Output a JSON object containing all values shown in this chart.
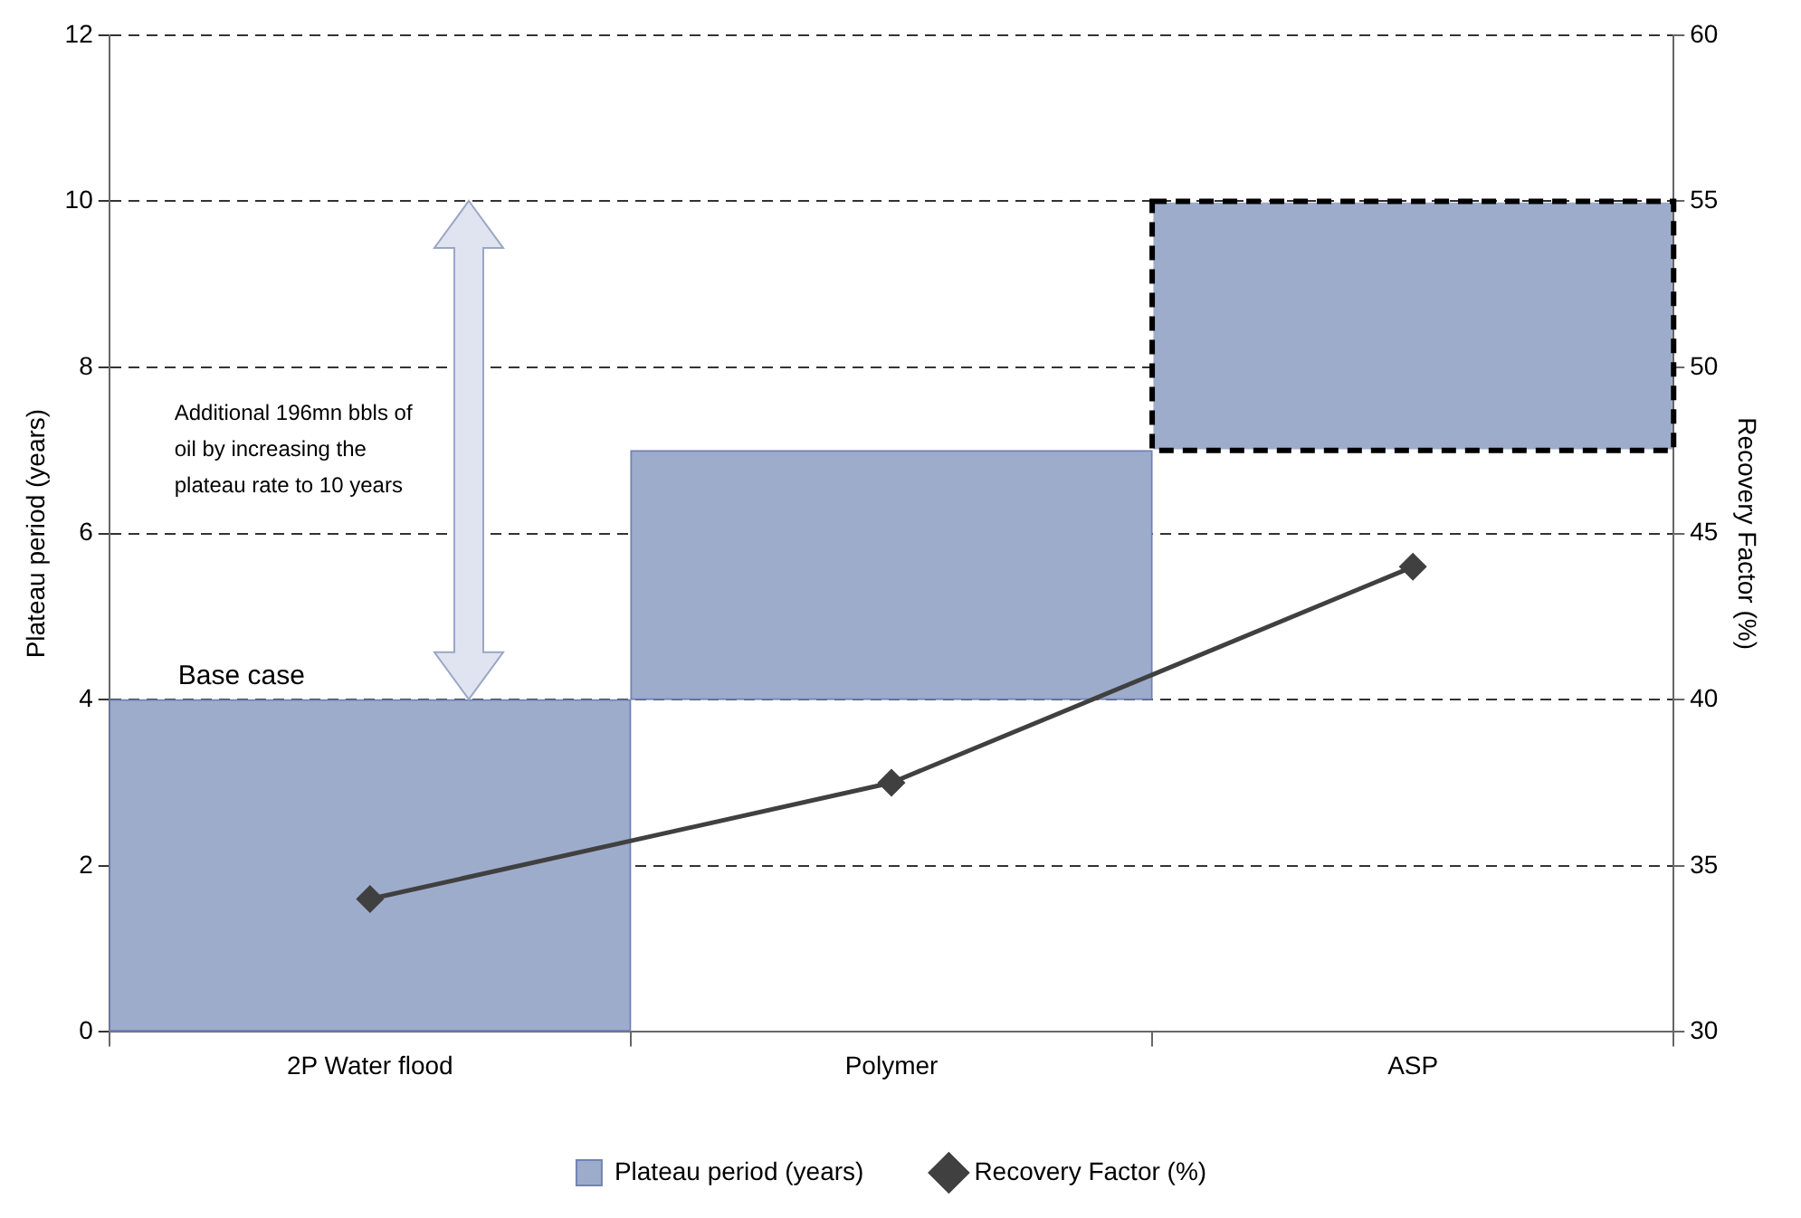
{
  "chart_data": {
    "type": "bar",
    "categories": [
      "2P Water flood",
      "Polymer",
      "ASP"
    ],
    "series": [
      {
        "name": "Plateau period (years)",
        "color": "#9eaccc",
        "values": [
          4,
          3,
          null
        ],
        "base": [
          0,
          4,
          null
        ]
      },
      {
        "color": "#9eaccc",
        "values": [
          null,
          null,
          3
        ],
        "base": [
          null,
          null,
          7
        ],
        "line_style": "dashed"
      },
      {
        "name": "Recovery Factor (%)",
        "type": "line",
        "axis": "y2",
        "color": "#404040",
        "values": [
          34,
          37.5,
          44
        ],
        "marker": "diamond"
      }
    ],
    "ylabel": "Plateau period (years)",
    "y2label": "Recovery Factor (%)",
    "ylim": [
      0,
      12
    ],
    "yticks": [
      0,
      2,
      4,
      6,
      8,
      10,
      12
    ],
    "y2lim": [
      30,
      60
    ],
    "y2ticks": [
      30,
      35,
      40,
      45,
      50,
      55,
      60
    ],
    "grid": "y",
    "legend": "bottom",
    "annotations": [
      "Base case",
      "Additional 196mn bbls of oil by increasing the plateau rate to 10 years"
    ]
  }
}
